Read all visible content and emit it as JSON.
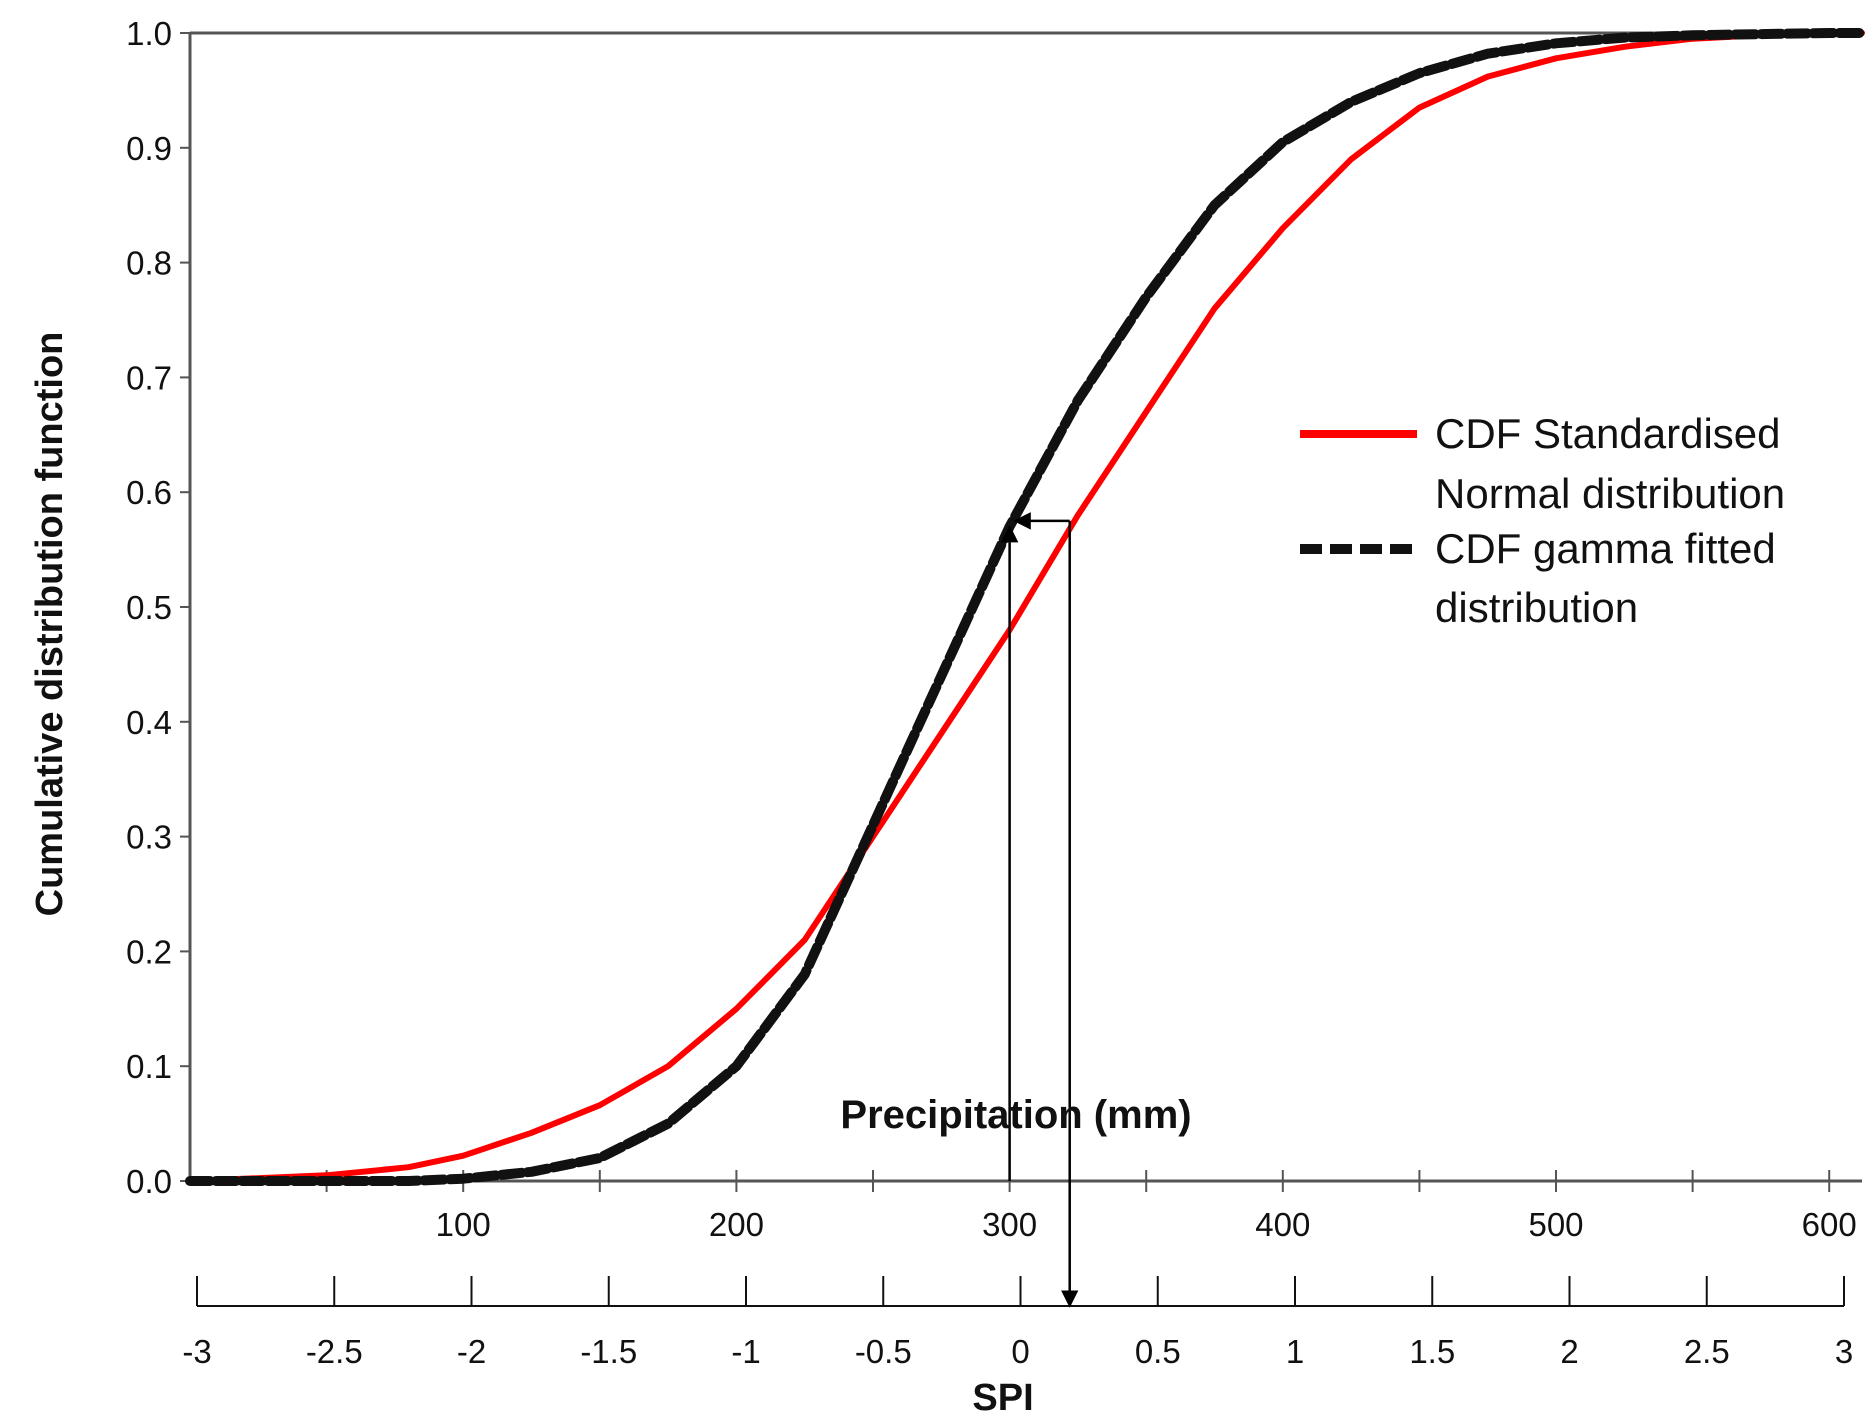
{
  "chart_data": {
    "type": "line",
    "title": "",
    "ylabel": "Cumulative distribution function",
    "xlabel": "Precipitation (mm)",
    "x2label": "SPI",
    "xlim": [
      0,
      612
    ],
    "ylim": [
      0,
      1
    ],
    "grid": false,
    "legend_position": "right-middle",
    "colors": {
      "normal": "#ff0000",
      "gamma": "#111111",
      "axis": "#555555",
      "arrow": "#000000"
    },
    "y_ticks": [
      "0.0",
      "0.1",
      "0.2",
      "0.3",
      "0.4",
      "0.5",
      "0.6",
      "0.7",
      "0.8",
      "0.9",
      "1.0"
    ],
    "y_tick_values": [
      0,
      0.1,
      0.2,
      0.3,
      0.4,
      0.5,
      0.6,
      0.7,
      0.8,
      0.9,
      1.0
    ],
    "x_ticks": [
      "100",
      "200",
      "300",
      "400",
      "500",
      "600"
    ],
    "x_tick_values": [
      100,
      200,
      300,
      400,
      500,
      600
    ],
    "x_minor_ticks": [
      50,
      150,
      250,
      350,
      450,
      550
    ],
    "spi_ticks": [
      "-3",
      "-2.5",
      "-2",
      "-1.5",
      "-1",
      "-0.5",
      "0",
      "0.5",
      "1",
      "1.5",
      "2",
      "2.5",
      "3"
    ],
    "spi_tick_values": [
      -3,
      -2.5,
      -2,
      -1.5,
      -1,
      -0.5,
      0,
      0.5,
      1,
      1.5,
      2,
      2.5,
      3
    ],
    "series": [
      {
        "name": "CDF Standardised Normal distribution",
        "key": "normal",
        "style": "solid",
        "x": [
          0,
          50,
          80,
          100,
          125,
          150,
          175,
          200,
          225,
          250,
          275,
          300,
          325,
          350,
          375,
          400,
          425,
          450,
          475,
          500,
          525,
          550,
          575,
          600,
          612
        ],
        "y": [
          0.0,
          0.005,
          0.012,
          0.022,
          0.042,
          0.066,
          0.1,
          0.15,
          0.21,
          0.3,
          0.39,
          0.48,
          0.58,
          0.67,
          0.76,
          0.83,
          0.89,
          0.935,
          0.962,
          0.978,
          0.988,
          0.995,
          0.998,
          0.999,
          1.0
        ]
      },
      {
        "name": "CDF gamma fitted distribution",
        "key": "gamma",
        "style": "dashed",
        "x": [
          0,
          80,
          100,
          125,
          150,
          175,
          200,
          225,
          250,
          275,
          300,
          325,
          350,
          375,
          400,
          425,
          450,
          475,
          500,
          525,
          550,
          575,
          600,
          612
        ],
        "y": [
          0.0,
          0.0,
          0.002,
          0.008,
          0.02,
          0.05,
          0.1,
          0.18,
          0.31,
          0.44,
          0.57,
          0.68,
          0.77,
          0.85,
          0.905,
          0.94,
          0.965,
          0.982,
          0.991,
          0.996,
          0.998,
          0.999,
          1.0,
          1.0
        ]
      }
    ],
    "annotations": {
      "arrow_up": {
        "x": 300,
        "y_from": 0,
        "y_to": 0.57
      },
      "arrow_left": {
        "from_x": 322,
        "to_x": 302,
        "y": 0.575
      },
      "arrow_down": {
        "x": 322,
        "y_from": 0.575,
        "y_to": "SPI axis"
      }
    }
  },
  "legend": {
    "normal_line1": "CDF Standardised",
    "normal_line2": "Normal distribution",
    "gamma_line1": "CDF gamma fitted",
    "gamma_line2": "distribution"
  }
}
